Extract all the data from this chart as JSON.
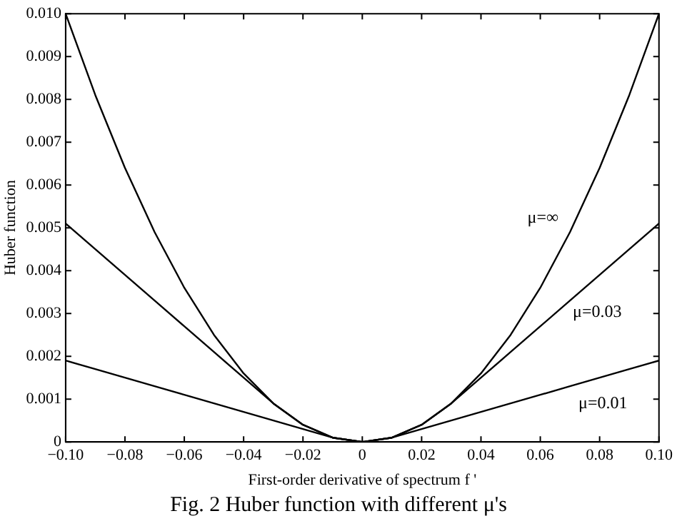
{
  "chart_data": {
    "type": "line",
    "xlabel": "First-order derivative of spectrum f '",
    "ylabel": "Huber function",
    "x": [
      -0.1,
      -0.09,
      -0.08,
      -0.07,
      -0.06,
      -0.05,
      -0.04,
      -0.03,
      -0.02,
      -0.01,
      0,
      0.01,
      0.02,
      0.03,
      0.04,
      0.05,
      0.06,
      0.07,
      0.08,
      0.09,
      0.1
    ],
    "series": [
      {
        "name": "μ=∞",
        "color": "#000000",
        "values": [
          0.01,
          0.0081,
          0.0064,
          0.0049,
          0.0036,
          0.0025,
          0.0016,
          0.0009,
          0.0004,
          0.0001,
          0,
          0.0001,
          0.0004,
          0.0009,
          0.0016,
          0.0025,
          0.0036,
          0.0049,
          0.0064,
          0.0081,
          0.01
        ]
      },
      {
        "name": "μ=0.03",
        "color": "#000000",
        "values": [
          0.0051,
          0.0045,
          0.0039,
          0.0033,
          0.0027,
          0.0021,
          0.0015,
          0.0009,
          0.0004,
          0.0001,
          0,
          0.0001,
          0.0004,
          0.0009,
          0.0015,
          0.0021,
          0.0027,
          0.0033,
          0.0039,
          0.0045,
          0.0051
        ]
      },
      {
        "name": "μ=0.01",
        "color": "#000000",
        "values": [
          0.0019,
          0.0017,
          0.0015,
          0.0013,
          0.0011,
          0.0009,
          0.0007,
          0.0005,
          0.0003,
          0.0001,
          0,
          0.0001,
          0.0003,
          0.0005,
          0.0007,
          0.0009,
          0.0011,
          0.0013,
          0.0015,
          0.0017,
          0.0019
        ]
      }
    ],
    "xlim": [
      -0.1,
      0.1
    ],
    "xticks": [
      {
        "value": -0.1,
        "label": "−0.10"
      },
      {
        "value": -0.08,
        "label": "−0.08"
      },
      {
        "value": -0.06,
        "label": "−0.06"
      },
      {
        "value": -0.04,
        "label": "−0.04"
      },
      {
        "value": -0.02,
        "label": "−0.02"
      },
      0,
      {
        "value": 0.02,
        "label": "0.02"
      },
      {
        "value": 0.04,
        "label": "0.04"
      },
      {
        "value": 0.06,
        "label": "0.06"
      },
      {
        "value": 0.08,
        "label": "0.08"
      },
      {
        "value": 0.1,
        "label": "0.10"
      }
    ],
    "ylim": [
      0,
      0.01
    ],
    "yticks": [
      0,
      0.001,
      0.002,
      0.003,
      0.004,
      0.005,
      0.006,
      0.007,
      0.008,
      0.009,
      {
        "value": 0.01,
        "label": "0.010"
      }
    ],
    "annotations": [
      "Fig. 2   Huber function with different μ's"
    ],
    "grid": false,
    "legend": "right",
    "marker": "none",
    "line_style": "solid"
  }
}
